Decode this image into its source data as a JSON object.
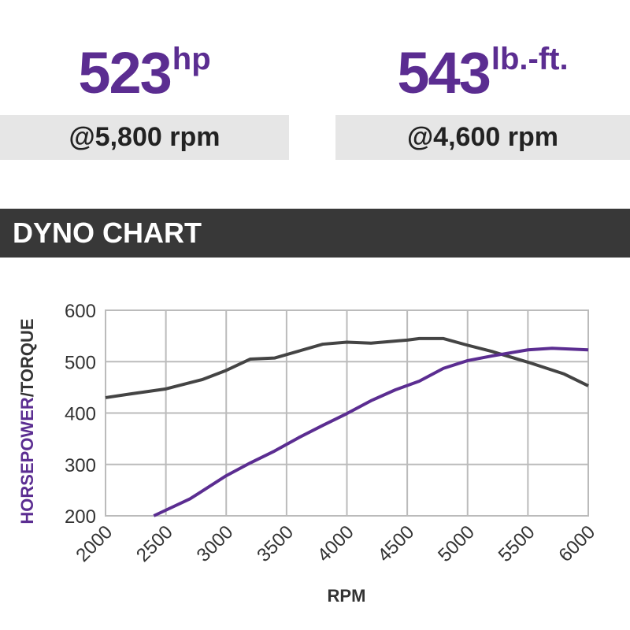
{
  "stats": [
    {
      "value": "523",
      "unit": "hp",
      "rpm": "@5,800 rpm"
    },
    {
      "value": "543",
      "unit": "lb.-ft.",
      "rpm": "@4,600 rpm"
    }
  ],
  "header": "DYNO CHART",
  "chart_data": {
    "type": "line",
    "ylabel_parts": [
      "HORSEPOWER",
      "/TORQUE"
    ],
    "xlabel": "RPM",
    "xlim": [
      2000,
      6000
    ],
    "xticks": [
      2000,
      2500,
      3000,
      3500,
      4000,
      4500,
      5000,
      5500,
      6000
    ],
    "ylim": [
      200,
      600
    ],
    "yticks": [
      200,
      300,
      400,
      500,
      600
    ],
    "grid": true,
    "series": [
      {
        "color": "#444444",
        "x": [
          2000,
          2200,
          2500,
          2800,
          3000,
          3200,
          3400,
          3800,
          4000,
          4200,
          4500,
          4600,
          4800,
          5000,
          5200,
          5500,
          5800,
          6000
        ],
        "values": [
          430,
          437,
          447,
          465,
          483,
          505,
          507,
          534,
          538,
          536,
          542,
          545,
          545,
          532,
          520,
          499,
          476,
          453
        ]
      },
      {
        "color": "#5b2d91",
        "x": [
          2400,
          2700,
          3000,
          3200,
          3400,
          3600,
          3800,
          4000,
          4200,
          4400,
          4600,
          4800,
          5000,
          5200,
          5500,
          5700,
          6000
        ],
        "values": [
          200,
          233,
          278,
          303,
          326,
          352,
          376,
          399,
          424,
          445,
          462,
          487,
          502,
          511,
          523,
          526,
          523
        ]
      }
    ]
  }
}
